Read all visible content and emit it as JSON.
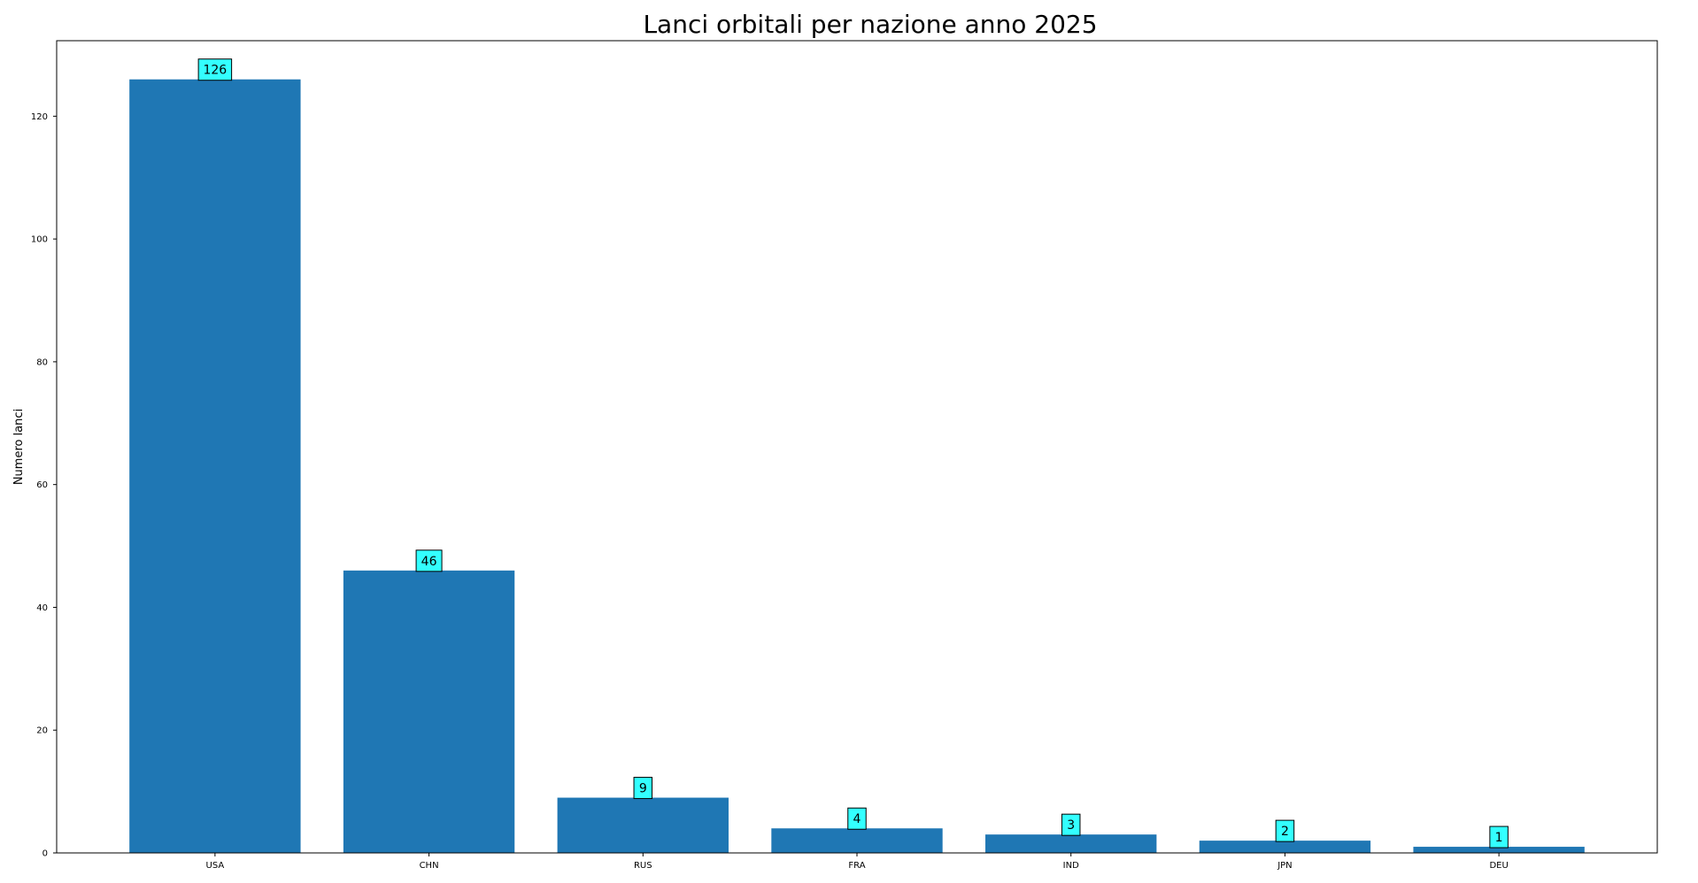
{
  "chart_data": {
    "type": "bar",
    "title": "Lanci orbitali per nazione anno 2025",
    "xlabel": "",
    "ylabel": "Numero lanci",
    "categories": [
      "USA",
      "CHN",
      "RUS",
      "FRA",
      "IND",
      "JPN",
      "DEU"
    ],
    "values": [
      126,
      46,
      9,
      4,
      3,
      2,
      1
    ],
    "ylim": [
      0,
      132.3
    ],
    "yticks": [
      0,
      20,
      40,
      60,
      80,
      100,
      120
    ],
    "grid": false,
    "bar_color": "#1f77b4",
    "label_box_color": "#33ffff"
  }
}
